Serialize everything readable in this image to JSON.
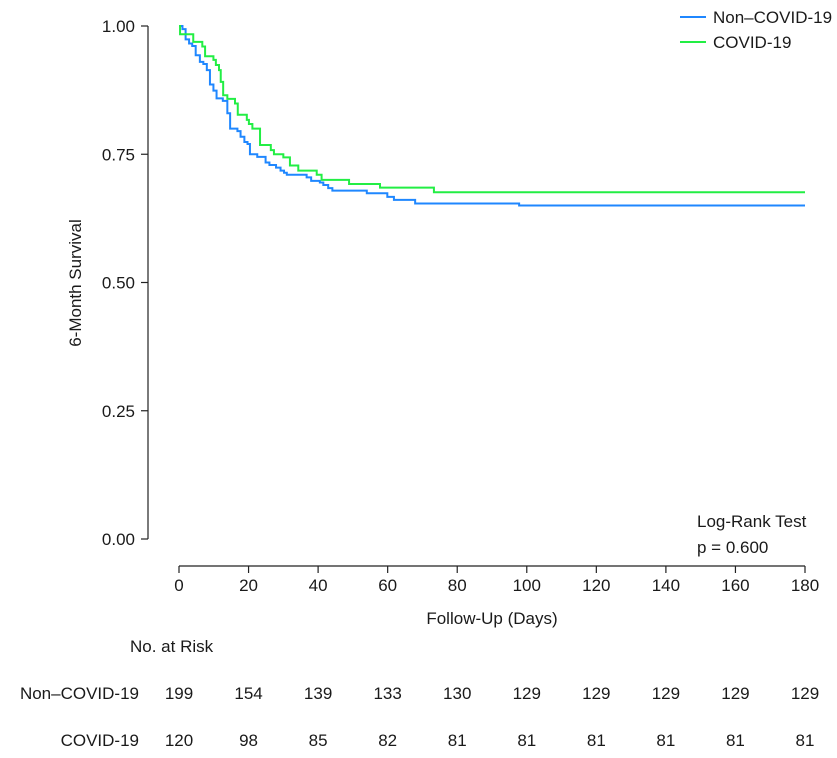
{
  "chart_data": {
    "type": "line",
    "subtype": "kaplan-meier step",
    "xlabel": "Follow-Up (Days)",
    "ylabel": "6-Month Survival",
    "xlim": [
      0,
      180
    ],
    "ylim": [
      0,
      1
    ],
    "xticks": [
      0,
      20,
      40,
      60,
      80,
      100,
      120,
      140,
      160,
      180
    ],
    "yticks": [
      "0.00",
      "0.25",
      "0.50",
      "0.75",
      "1.00"
    ],
    "ytick_values": [
      0,
      0.25,
      0.5,
      0.75,
      1.0
    ],
    "grid": false,
    "legend_position": "top-right",
    "series": [
      {
        "name": "Non–COVID-19",
        "color": "#1f87ff",
        "points": [
          [
            0,
            1.0
          ],
          [
            1,
            0.994
          ],
          [
            1.9,
            0.974
          ],
          [
            2.9,
            0.966
          ],
          [
            3.8,
            0.961
          ],
          [
            4.8,
            0.943
          ],
          [
            6,
            0.93
          ],
          [
            7,
            0.926
          ],
          [
            8,
            0.914
          ],
          [
            8.9,
            0.886
          ],
          [
            9.9,
            0.874
          ],
          [
            10.8,
            0.859
          ],
          [
            12.6,
            0.854
          ],
          [
            13.9,
            0.83
          ],
          [
            14.7,
            0.8
          ],
          [
            16.8,
            0.795
          ],
          [
            17.7,
            0.784
          ],
          [
            18.8,
            0.774
          ],
          [
            19.7,
            0.77
          ],
          [
            20.4,
            0.75
          ],
          [
            22.5,
            0.745
          ],
          [
            24.9,
            0.734
          ],
          [
            26,
            0.729
          ],
          [
            27.9,
            0.724
          ],
          [
            29.2,
            0.718
          ],
          [
            30.2,
            0.714
          ],
          [
            31,
            0.71
          ],
          [
            36.7,
            0.705
          ],
          [
            38,
            0.698
          ],
          [
            40.5,
            0.695
          ],
          [
            41.5,
            0.69
          ],
          [
            42.9,
            0.684
          ],
          [
            44.1,
            0.679
          ],
          [
            54,
            0.674
          ],
          [
            59.9,
            0.667
          ],
          [
            61.8,
            0.661
          ],
          [
            67.9,
            0.654
          ],
          [
            97.8,
            0.65
          ],
          [
            180,
            0.65
          ]
        ]
      },
      {
        "name": "COVID-19",
        "color": "#22ee44",
        "points": [
          [
            0,
            1.0
          ],
          [
            0.3,
            0.984
          ],
          [
            4.1,
            0.969
          ],
          [
            6.7,
            0.96
          ],
          [
            7.5,
            0.941
          ],
          [
            9.9,
            0.934
          ],
          [
            10.6,
            0.924
          ],
          [
            11.5,
            0.914
          ],
          [
            12,
            0.891
          ],
          [
            12.7,
            0.865
          ],
          [
            13.9,
            0.858
          ],
          [
            16.1,
            0.849
          ],
          [
            16.9,
            0.827
          ],
          [
            19.5,
            0.817
          ],
          [
            20.1,
            0.809
          ],
          [
            21.1,
            0.8
          ],
          [
            23.3,
            0.768
          ],
          [
            26.4,
            0.758
          ],
          [
            27.3,
            0.75
          ],
          [
            30,
            0.744
          ],
          [
            31.9,
            0.728
          ],
          [
            34.3,
            0.718
          ],
          [
            39.6,
            0.71
          ],
          [
            41,
            0.7
          ],
          [
            48.9,
            0.692
          ],
          [
            57.8,
            0.685
          ],
          [
            73.3,
            0.676
          ],
          [
            180,
            0.676
          ]
        ]
      }
    ],
    "annotations": [
      "Log-Rank Test",
      "p = 0.600"
    ],
    "risk_table": {
      "title": "No. at Risk",
      "rows": [
        {
          "label": "Non–COVID-19",
          "values": [
            199,
            154,
            139,
            133,
            130,
            129,
            129,
            129,
            129,
            129
          ]
        },
        {
          "label": "COVID-19",
          "values": [
            120,
            98,
            85,
            82,
            81,
            81,
            81,
            81,
            81,
            81
          ]
        }
      ]
    }
  }
}
